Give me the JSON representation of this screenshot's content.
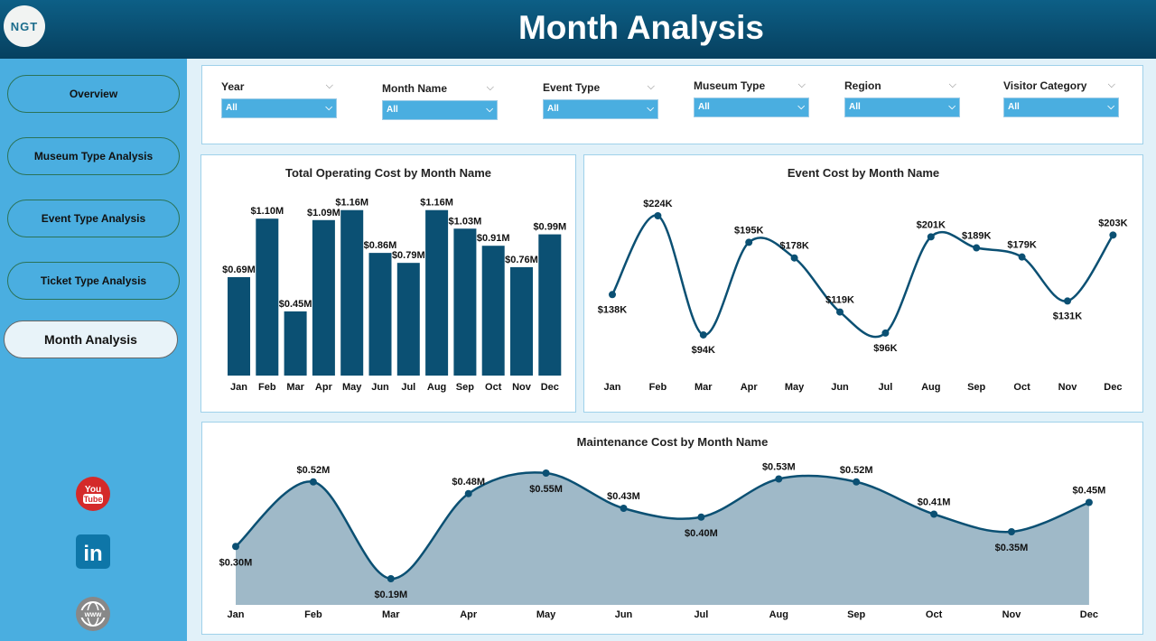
{
  "header": {
    "title": "Month Analysis",
    "logo_text": "NGT"
  },
  "sidebar": {
    "items": [
      {
        "label": "Overview"
      },
      {
        "label": "Museum Type Analysis"
      },
      {
        "label": "Event Type Analysis"
      },
      {
        "label": "Ticket Type Analysis"
      },
      {
        "label": "Month Analysis"
      }
    ],
    "social": [
      "youtube-icon",
      "linkedin-icon",
      "website-icon"
    ]
  },
  "filters": [
    {
      "label": "Year",
      "value": "All"
    },
    {
      "label": "Month Name",
      "value": "All"
    },
    {
      "label": "Event Type",
      "value": "All"
    },
    {
      "label": "Museum Type",
      "value": "All"
    },
    {
      "label": "Region",
      "value": "All"
    },
    {
      "label": "Visitor Category",
      "value": "All"
    }
  ],
  "colors": {
    "bar": "#0b5073",
    "line": "#0b5073",
    "area": "#9fb9c8",
    "sidebar": "#4aaee0"
  },
  "chart_data": [
    {
      "type": "bar",
      "title": "Total Operating Cost by Month Name",
      "categories": [
        "Jan",
        "Feb",
        "Mar",
        "Apr",
        "May",
        "Jun",
        "Jul",
        "Aug",
        "Sep",
        "Oct",
        "Nov",
        "Dec"
      ],
      "values": [
        0.69,
        1.1,
        0.45,
        1.09,
        1.16,
        0.86,
        0.79,
        1.16,
        1.03,
        0.91,
        0.76,
        0.99
      ],
      "labels": [
        "$0.69M",
        "$1.10M",
        "$0.45M",
        "$1.09M",
        "$1.16M",
        "$0.86M",
        "$0.79M",
        "$1.16M",
        "$1.03M",
        "$0.91M",
        "$0.76M",
        "$0.99M"
      ]
    },
    {
      "type": "line",
      "title": "Event Cost by Month Name",
      "categories": [
        "Jan",
        "Feb",
        "Mar",
        "Apr",
        "May",
        "Jun",
        "Jul",
        "Aug",
        "Sep",
        "Oct",
        "Nov",
        "Dec"
      ],
      "values": [
        138,
        224,
        94,
        195,
        178,
        119,
        96,
        201,
        189,
        179,
        131,
        203
      ],
      "labels": [
        "$138K",
        "$224K",
        "$94K",
        "$195K",
        "$178K",
        "$119K",
        "$96K",
        "$201K",
        "$189K",
        "$179K",
        "$131K",
        "$203K"
      ]
    },
    {
      "type": "area",
      "title": "Maintenance Cost by Month Name",
      "categories": [
        "Jan",
        "Feb",
        "Mar",
        "Apr",
        "May",
        "Jun",
        "Jul",
        "Aug",
        "Sep",
        "Oct",
        "Nov",
        "Dec"
      ],
      "values": [
        0.3,
        0.52,
        0.19,
        0.48,
        0.55,
        0.43,
        0.4,
        0.53,
        0.52,
        0.41,
        0.35,
        0.45
      ],
      "labels": [
        "$0.30M",
        "$0.52M",
        "$0.19M",
        "$0.48M",
        "$0.55M",
        "$0.43M",
        "$0.40M",
        "$0.53M",
        "$0.52M",
        "$0.41M",
        "$0.35M",
        "$0.45M"
      ]
    }
  ]
}
